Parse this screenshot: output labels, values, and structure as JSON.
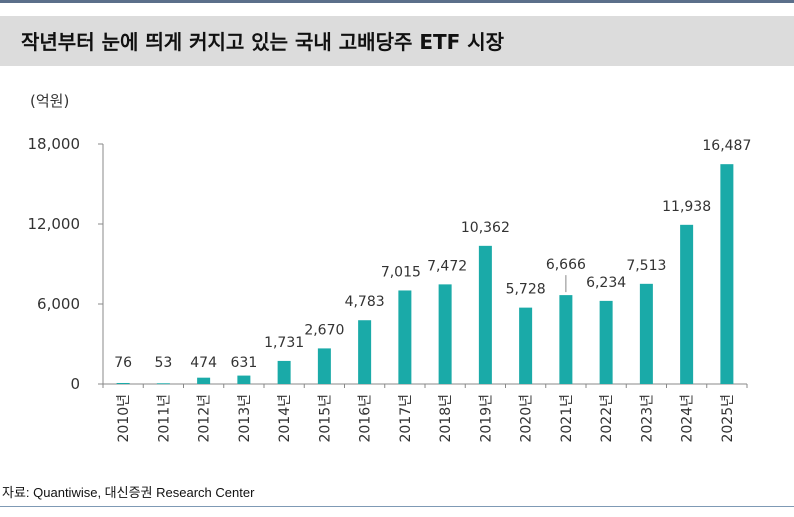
{
  "header": {
    "title": "작년부터 눈에 띄게 커지고 있는 국내 고배당주 ETF 시장"
  },
  "chart_data": {
    "type": "bar",
    "title": "작년부터 눈에 띄게 커지고 있는 국내 고배당주 ETF 시장",
    "ylabel": "(억원)",
    "xlabel": "",
    "ylim": [
      0,
      18000
    ],
    "yticks": [
      "0",
      "6,000",
      "12,000",
      "18,000"
    ],
    "categories": [
      "2010년",
      "2011년",
      "2012년",
      "2013년",
      "2014년",
      "2015년",
      "2016년",
      "2017년",
      "2018년",
      "2019년",
      "2020년",
      "2021년",
      "2022년",
      "2023년",
      "2024년",
      "2025년"
    ],
    "values": [
      76,
      53,
      474,
      631,
      1731,
      2670,
      4783,
      7015,
      7472,
      10362,
      5728,
      6666,
      6234,
      7513,
      11938,
      16487
    ],
    "value_labels": [
      "76",
      "53",
      "474",
      "631",
      "1,731",
      "2,670",
      "4,783",
      "7,015",
      "7,472",
      "10,362",
      "5,728",
      "6,666",
      "6,234",
      "7,513",
      "11,938",
      "16,487"
    ],
    "bar_color": "#1aaaa8",
    "grid": false
  },
  "footer": {
    "source": "자료: Quantiwise, 대신증권 Research Center"
  }
}
